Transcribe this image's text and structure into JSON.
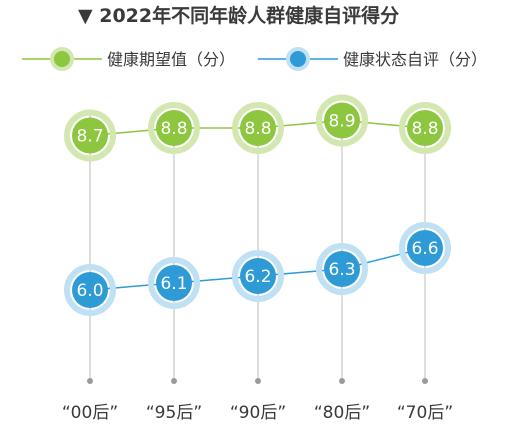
{
  "chart_data": {
    "type": "line",
    "title": "▼ 2022年不同年龄人群健康自评得分",
    "categories": [
      "“00后”",
      "“95后”",
      "“90后”",
      "“80后”",
      "“70后”"
    ],
    "series": [
      {
        "name": "健康期望值（分）",
        "values": [
          8.7,
          8.8,
          8.8,
          8.9,
          8.8
        ],
        "color": "#8dc63f"
      },
      {
        "name": "健康状态自评（分）",
        "values": [
          6.0,
          6.1,
          6.2,
          6.3,
          6.6
        ],
        "color": "#2e9bd6"
      }
    ],
    "legend_position": "top",
    "grid": false
  }
}
